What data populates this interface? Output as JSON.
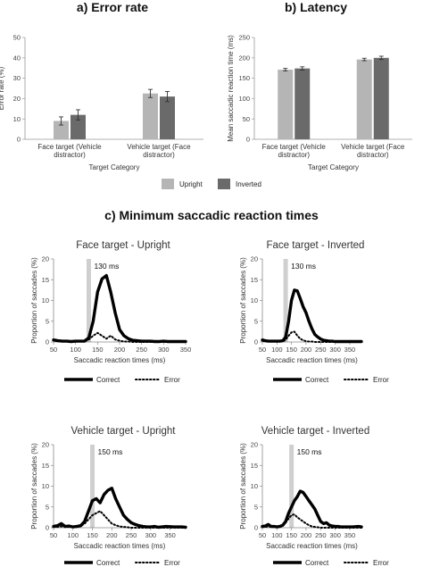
{
  "figure": {
    "section_titles": [
      "a) Error rate",
      "b) Latency",
      "c) Minimum saccadic reaction times"
    ],
    "legend_ab": [
      "Upright",
      "Inverted"
    ],
    "legend_c": [
      "Correct",
      "Error"
    ]
  },
  "colors": {
    "upright": "#b5b5b5",
    "inverted": "#6a6a6a",
    "correct": "#000000",
    "error": "#000000",
    "minline": "#cfcfcf"
  },
  "chart_data": [
    {
      "type": "bar",
      "title": "a) Error rate",
      "xlabel": "Target Category",
      "ylabel": "Error rate (%)",
      "ylim": [
        0,
        50
      ],
      "yticks": [
        0,
        10,
        20,
        30,
        40,
        50
      ],
      "categories": [
        "Face target (Vehicle distractor)",
        "Vehicle target (Face distractor)"
      ],
      "series": [
        {
          "name": "Upright",
          "values": [
            9,
            22.5
          ],
          "errors": [
            2,
            2
          ]
        },
        {
          "name": "Inverted",
          "values": [
            12,
            21
          ],
          "errors": [
            2.5,
            2.5
          ]
        }
      ]
    },
    {
      "type": "bar",
      "title": "b) Latency",
      "xlabel": "Target Category",
      "ylabel": "Mean saccadic reaction time (ms)",
      "ylim": [
        0,
        250
      ],
      "yticks": [
        0,
        50,
        100,
        150,
        200,
        250
      ],
      "categories": [
        "Face target (Vehicle distractor)",
        "Vehicle target (Face distractor)"
      ],
      "series": [
        {
          "name": "Upright",
          "values": [
            171,
            196
          ],
          "errors": [
            3,
            3
          ]
        },
        {
          "name": "Inverted",
          "values": [
            174,
            200
          ],
          "errors": [
            4,
            4
          ]
        }
      ]
    },
    {
      "type": "line",
      "title": "Face target - Upright",
      "xlabel": "Saccadic reaction times (ms)",
      "ylabel": "Proportion of saccades (%)",
      "xlim": [
        50,
        350
      ],
      "ylim": [
        0,
        20
      ],
      "xticks": [
        50,
        100,
        150,
        200,
        250,
        300,
        350
      ],
      "yticks": [
        0,
        5,
        10,
        15,
        20
      ],
      "min_srt_label": "130 ms",
      "min_srt": 130,
      "series": [
        {
          "name": "Correct",
          "x": [
            50,
            60,
            70,
            80,
            90,
            100,
            110,
            120,
            130,
            140,
            150,
            160,
            170,
            180,
            190,
            200,
            210,
            220,
            230,
            240,
            250,
            260,
            270,
            280,
            290,
            300,
            310,
            320,
            330,
            340,
            350
          ],
          "y": [
            0.5,
            0.3,
            0.2,
            0.2,
            0.1,
            0.2,
            0.2,
            0.2,
            1,
            5,
            12,
            15.2,
            16,
            12,
            7,
            3,
            1.5,
            0.8,
            0.4,
            0.3,
            0.2,
            0.2,
            0.2,
            0.1,
            0.1,
            0.2,
            0.1,
            0.1,
            0.1,
            0.1,
            0.1
          ]
        },
        {
          "name": "Error",
          "x": [
            50,
            60,
            70,
            80,
            90,
            100,
            110,
            120,
            130,
            140,
            150,
            160,
            170,
            180,
            190,
            200,
            210,
            220,
            230,
            240,
            250,
            260,
            270,
            280,
            290,
            300,
            310,
            320,
            330,
            340,
            350
          ],
          "y": [
            0.4,
            0.2,
            0.1,
            0.1,
            0.1,
            0.1,
            0.1,
            0.1,
            0.6,
            1.5,
            2.2,
            1.5,
            0.8,
            1.5,
            0.6,
            0.3,
            0.1,
            0.1,
            0,
            0,
            0,
            0,
            0,
            0,
            0,
            0,
            0,
            0,
            0,
            0,
            0
          ]
        }
      ]
    },
    {
      "type": "line",
      "title": "Face target - Inverted",
      "xlabel": "Saccadic reaction times (ms)",
      "ylabel": "Proportion of saccades (%)",
      "xlim": [
        50,
        390
      ],
      "ylim": [
        0,
        20
      ],
      "xticks": [
        50,
        100,
        150,
        200,
        250,
        300,
        350
      ],
      "yticks": [
        0,
        5,
        10,
        15,
        20
      ],
      "min_srt_label": "130 ms",
      "min_srt": 130,
      "series": [
        {
          "name": "Correct",
          "x": [
            50,
            60,
            70,
            80,
            90,
            100,
            110,
            120,
            130,
            140,
            150,
            160,
            170,
            180,
            190,
            200,
            210,
            220,
            230,
            240,
            250,
            260,
            270,
            280,
            290,
            300,
            320,
            340,
            360,
            380,
            390
          ],
          "y": [
            0.5,
            0.3,
            0.2,
            0.2,
            0.2,
            0.2,
            0.2,
            0.3,
            1.2,
            5,
            10,
            12.5,
            12.3,
            10.5,
            8.5,
            7,
            5,
            3.2,
            1.8,
            1.2,
            0.7,
            0.4,
            0.3,
            0.2,
            0.2,
            0.1,
            0.1,
            0.1,
            0.1,
            0.1,
            0.1
          ]
        },
        {
          "name": "Error",
          "x": [
            50,
            60,
            70,
            80,
            90,
            100,
            110,
            120,
            130,
            140,
            150,
            160,
            170,
            180,
            190,
            200,
            210,
            220,
            230,
            240,
            250,
            260,
            270,
            280,
            290,
            300,
            320,
            340,
            360,
            380,
            390
          ],
          "y": [
            0.3,
            0.2,
            0.1,
            0.1,
            0.1,
            0.1,
            0.1,
            0.2,
            0.5,
            1.5,
            2.3,
            2.5,
            1.5,
            0.8,
            0.4,
            0.2,
            0.1,
            0.1,
            0,
            0,
            0,
            0,
            0,
            0,
            0,
            0,
            0,
            0,
            0,
            0,
            0
          ]
        }
      ]
    },
    {
      "type": "line",
      "title": "Vehicle target - Upright",
      "xlabel": "Saccadic reaction times (ms)",
      "ylabel": "Proportion of saccades (%)",
      "xlim": [
        50,
        390
      ],
      "ylim": [
        0,
        20
      ],
      "xticks": [
        50,
        100,
        150,
        200,
        250,
        300,
        350
      ],
      "yticks": [
        0,
        5,
        10,
        15,
        20
      ],
      "min_srt_label": "150 ms",
      "min_srt": 150,
      "series": [
        {
          "name": "Correct",
          "x": [
            50,
            60,
            70,
            80,
            90,
            100,
            110,
            120,
            130,
            140,
            150,
            160,
            170,
            180,
            190,
            200,
            210,
            220,
            230,
            240,
            250,
            260,
            270,
            280,
            290,
            300,
            310,
            320,
            340,
            360,
            380,
            390
          ],
          "y": [
            0.3,
            0.5,
            1,
            0.3,
            0.4,
            0.2,
            0.3,
            0.5,
            1.5,
            4,
            6.5,
            7,
            6,
            8,
            9,
            9.5,
            7,
            5,
            3,
            2,
            1.2,
            0.8,
            0.5,
            0.3,
            0.2,
            0.2,
            0.3,
            0.1,
            0.3,
            0.2,
            0.2,
            0.1
          ]
        },
        {
          "name": "Error",
          "x": [
            50,
            60,
            70,
            80,
            90,
            100,
            110,
            120,
            130,
            140,
            150,
            160,
            170,
            180,
            190,
            200,
            210,
            220,
            230,
            240,
            250,
            260,
            270,
            280,
            290,
            300,
            310,
            320,
            340,
            360,
            380,
            390
          ],
          "y": [
            0.2,
            0.2,
            0.3,
            0.2,
            0.2,
            0.1,
            0.2,
            0.4,
            1,
            2,
            3,
            3.5,
            4,
            3,
            2,
            1,
            0.6,
            0.3,
            0.2,
            0.1,
            0,
            0,
            0,
            0,
            0,
            0,
            0,
            0,
            0,
            0,
            0,
            0
          ]
        }
      ]
    },
    {
      "type": "line",
      "title": "Vehicle target - Inverted",
      "xlabel": "Saccadic reaction times (ms)",
      "ylabel": "Proportion of saccades (%)",
      "xlim": [
        50,
        390
      ],
      "ylim": [
        0,
        20
      ],
      "xticks": [
        50,
        100,
        150,
        200,
        250,
        300,
        350
      ],
      "yticks": [
        0,
        5,
        10,
        15,
        20
      ],
      "min_srt_label": "150 ms",
      "min_srt": 150,
      "series": [
        {
          "name": "Correct",
          "x": [
            50,
            60,
            70,
            80,
            90,
            100,
            110,
            120,
            130,
            140,
            150,
            160,
            170,
            180,
            190,
            200,
            210,
            220,
            230,
            240,
            250,
            260,
            270,
            280,
            290,
            300,
            310,
            320,
            340,
            360,
            380,
            390
          ],
          "y": [
            0.3,
            0.4,
            0.8,
            0.3,
            0.3,
            0.2,
            0.3,
            0.6,
            1.5,
            3.5,
            5,
            6.5,
            7.5,
            8.8,
            8.5,
            7.5,
            6.5,
            5.5,
            4.5,
            3,
            1.5,
            1,
            1.2,
            0.6,
            0.4,
            0.3,
            0.3,
            0.2,
            0.2,
            0.2,
            0.3,
            0.2
          ]
        },
        {
          "name": "Error",
          "x": [
            50,
            60,
            70,
            80,
            90,
            100,
            110,
            120,
            130,
            140,
            150,
            160,
            170,
            180,
            190,
            200,
            210,
            220,
            230,
            240,
            250,
            260,
            270,
            280,
            290,
            300,
            310,
            320,
            340,
            360,
            380,
            390
          ],
          "y": [
            0.2,
            0.2,
            0.3,
            0.2,
            0.2,
            0.1,
            0.2,
            0.5,
            1.2,
            2.2,
            3,
            3.2,
            2.5,
            2,
            1.5,
            1,
            0.6,
            0.3,
            0.2,
            0.1,
            0,
            0,
            0,
            0,
            0,
            0,
            0,
            0,
            0,
            0,
            0,
            0
          ]
        }
      ]
    }
  ]
}
